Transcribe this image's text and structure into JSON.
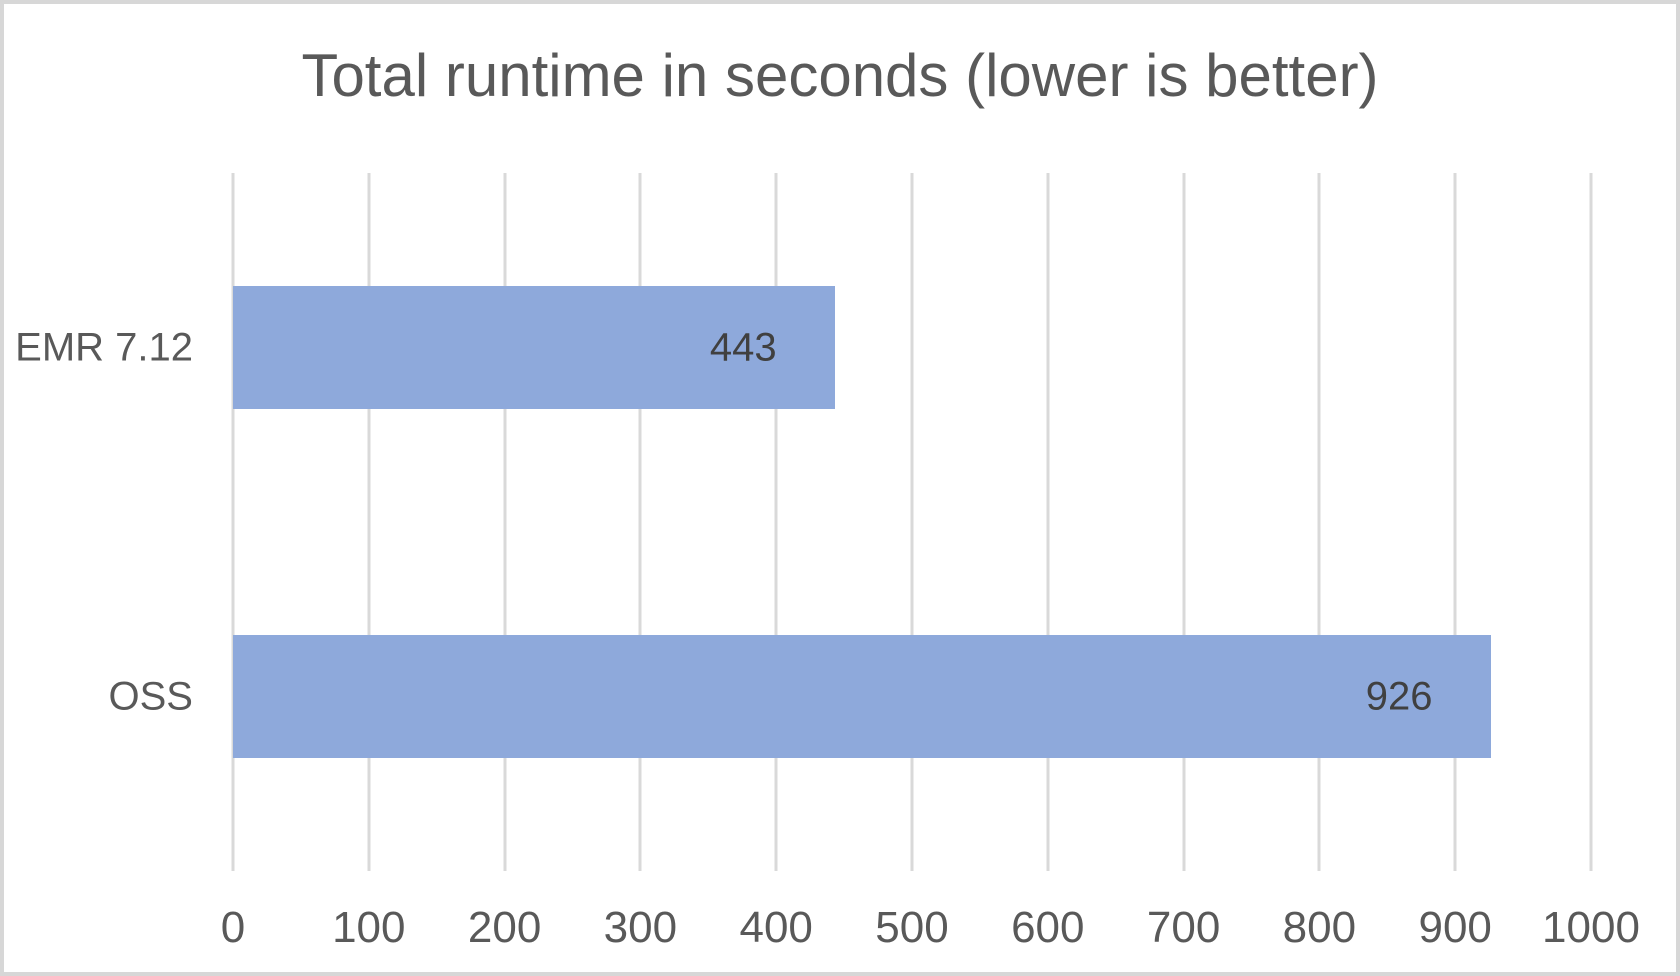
{
  "frame": {
    "background_color": "#ffffff",
    "border_color": "#d7d7d7"
  },
  "chart_data": {
    "type": "bar",
    "orientation": "horizontal",
    "title": "Total runtime in seconds (lower is better)",
    "categories": [
      "EMR 7.12",
      "OSS"
    ],
    "values": [
      443,
      926
    ],
    "data_labels": [
      "443",
      "926"
    ],
    "data_label_position": "inside-end",
    "xlabel": "",
    "ylabel": "",
    "xlim": [
      0,
      1000
    ],
    "xticks": [
      0,
      100,
      200,
      300,
      400,
      500,
      600,
      700,
      800,
      900,
      1000
    ],
    "grid": "vertical",
    "legend": "none",
    "colors": {
      "bar_fill": "#8ea9db",
      "gridline": "#d9d9d9",
      "title_text": "#595959",
      "axis_text": "#595959",
      "data_label_text": "#404040"
    }
  }
}
